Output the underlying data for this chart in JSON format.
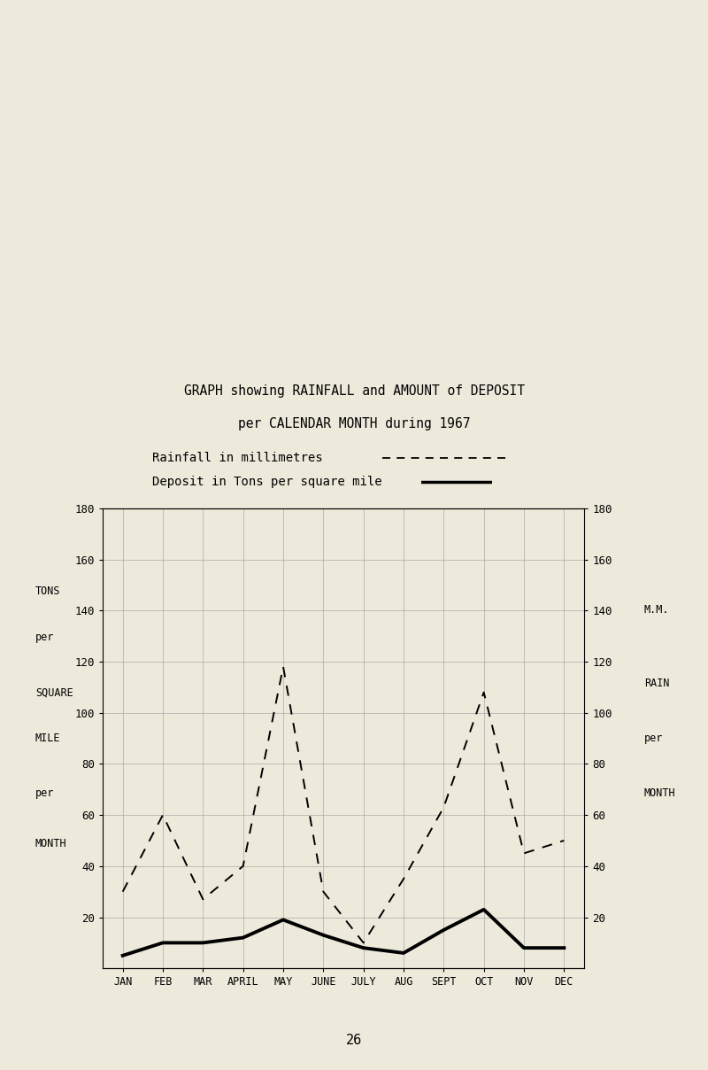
{
  "title_line1": "GRAPH showing RAINFALL and AMOUNT of DEPOSIT",
  "title_line2": "per CALENDAR MONTH during 1967",
  "legend_rainfall": "Rainfall in millimetres",
  "legend_deposit": "Deposit in Tons per square mile",
  "months": [
    "JAN",
    "FEB",
    "MAR",
    "APRIL",
    "MAY",
    "JUNE",
    "JULY",
    "AUG",
    "SEPT",
    "OCT",
    "NOV",
    "DEC"
  ],
  "rainfall_mm": [
    30,
    60,
    27,
    40,
    118,
    30,
    10,
    35,
    63,
    108,
    45,
    50
  ],
  "deposit_tons": [
    5,
    10,
    10,
    12,
    19,
    13,
    8,
    6,
    15,
    23,
    8,
    8
  ],
  "ylim": [
    0,
    180
  ],
  "yticks": [
    20,
    40,
    60,
    80,
    100,
    120,
    140,
    160,
    180
  ],
  "bg_color": "#edeadb",
  "page_number": "26",
  "font_family": "monospace"
}
